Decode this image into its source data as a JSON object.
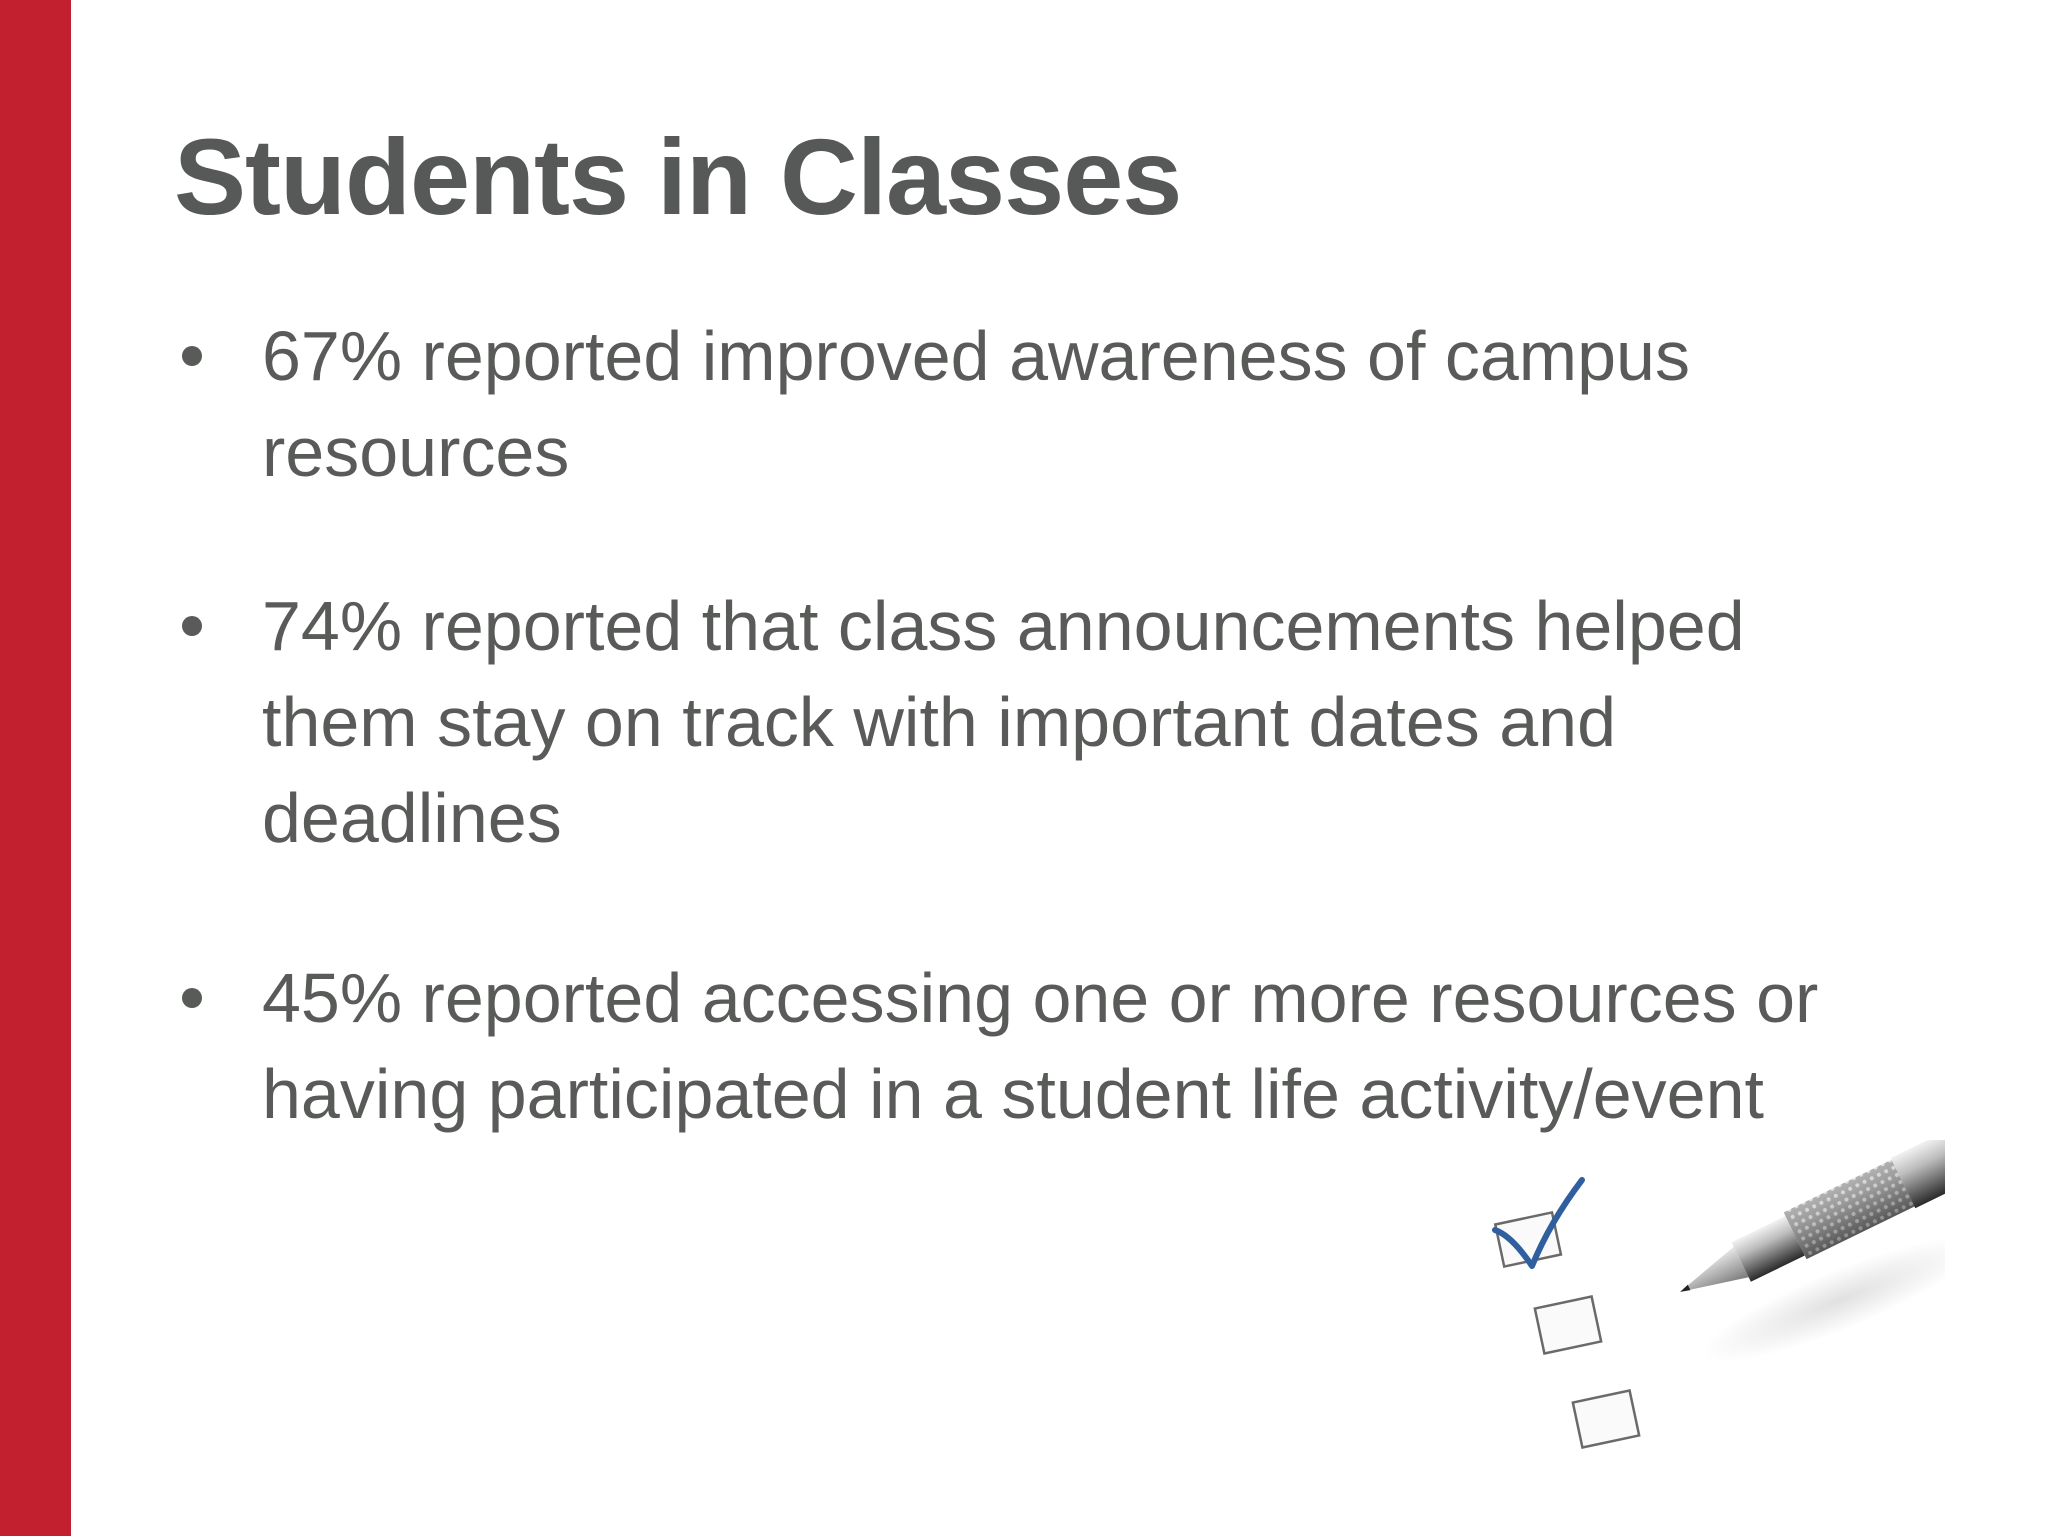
{
  "slide": {
    "title": "Students in Classes",
    "bullets": [
      {
        "text": "67% reported improved awareness of campus resources"
      },
      {
        "text": "74% reported that class announcements helped them stay on track with important dates and deadlines"
      },
      {
        "text": "45% reported accessing one or more resources or having participated in a student life activity/event"
      }
    ]
  },
  "colors": {
    "accent": "#c21f2f",
    "text": "#595b59",
    "checkmark": "#2f5f9e"
  },
  "icons": {
    "illustration": "checklist-with-pen-icon"
  }
}
